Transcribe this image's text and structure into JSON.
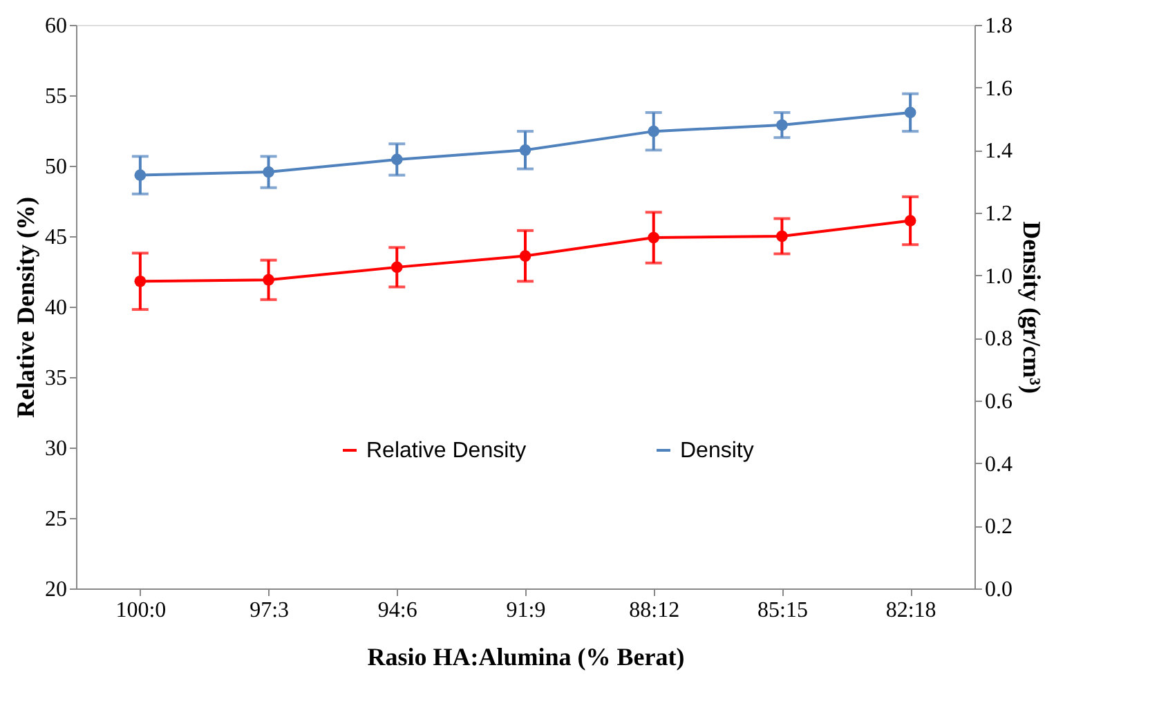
{
  "chart_data": {
    "type": "line",
    "xlabel": "Rasio HA:Alumina (% Berat)",
    "ylabel": "Relative Density (%)",
    "y2label": "Density (gr/cm³)",
    "categories": [
      "100:0",
      "97:3",
      "94:6",
      "91:9",
      "88:12",
      "85:15",
      "82:18"
    ],
    "series": [
      {
        "name": "Relative Density",
        "color": "#ff0000",
        "values": [
          41.8,
          41.9,
          42.8,
          43.6,
          44.9,
          45.0,
          46.1
        ],
        "errors": [
          2.0,
          1.4,
          1.4,
          1.8,
          1.8,
          1.25,
          1.7
        ]
      },
      {
        "name": "Density",
        "color": "#4f81bd",
        "axis": "y2",
        "values": [
          1.32,
          1.33,
          1.37,
          1.4,
          1.46,
          1.48,
          1.52
        ],
        "errors": [
          0.06,
          0.05,
          0.05,
          0.06,
          0.06,
          0.04,
          0.06
        ]
      }
    ],
    "ylim": [
      20,
      60
    ],
    "yticks": [
      20,
      25,
      30,
      35,
      40,
      45,
      50,
      55,
      60
    ],
    "y2lim": [
      0,
      1.8
    ],
    "y2ticks": [
      {
        "value": 0,
        "label": "0.0"
      },
      0.2,
      0.4,
      0.6,
      0.8,
      {
        "value": 1,
        "label": "1.0"
      },
      1.2,
      1.4,
      1.6,
      1.8
    ],
    "marker": "circle",
    "line_style": "solid",
    "grid": false,
    "legend": "bottom"
  }
}
